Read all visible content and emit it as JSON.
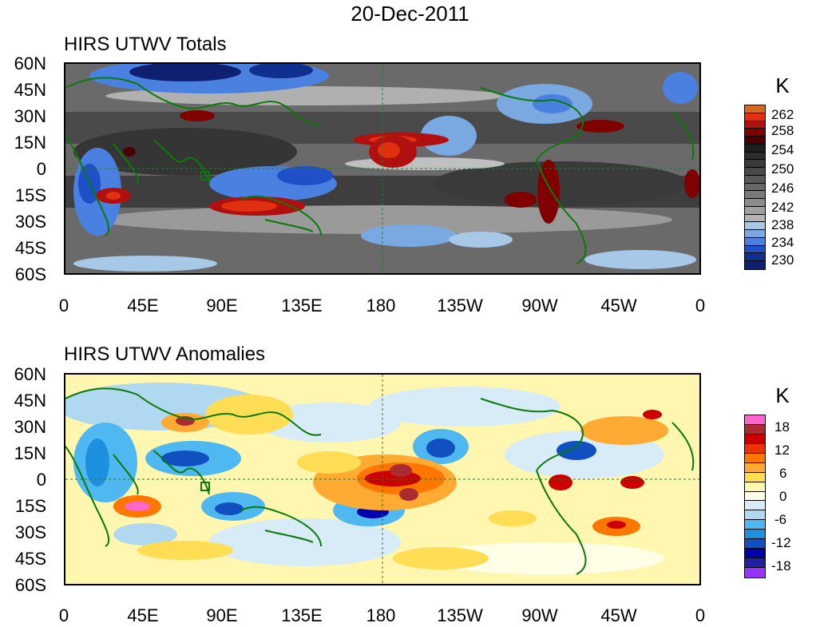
{
  "title": "20-Dec-2011",
  "x_ticks": [
    "0",
    "45E",
    "90E",
    "135E",
    "180",
    "135W",
    "90W",
    "45W",
    "0"
  ],
  "y_ticks": [
    "60N",
    "45N",
    "30N",
    "15N",
    "0",
    "15S",
    "30S",
    "45S",
    "60S"
  ],
  "panels": [
    {
      "title": "HIRS UTWV Totals",
      "units": "K",
      "colorbar_labels": [
        "262",
        "258",
        "254",
        "250",
        "246",
        "242",
        "238",
        "234",
        "230"
      ],
      "colorbar_colors": [
        "#d2691e",
        "#e03010",
        "#b01010",
        "#800000",
        "#4a0000",
        "#1e1e1e",
        "#2c2c2c",
        "#3a3a3a",
        "#494949",
        "#585858",
        "#686868",
        "#7a7a7a",
        "#8c8c8c",
        "#a0a0a0",
        "#b4b4b4",
        "#a8c8e8",
        "#7aa8e0",
        "#4a80e0",
        "#2050c8",
        "#103090",
        "#102070"
      ]
    },
    {
      "title": "HIRS UTWV Anomalies",
      "units": "K",
      "colorbar_labels": [
        "18",
        "12",
        "6",
        "0",
        "-6",
        "-12",
        "-18"
      ],
      "colorbar_colors": [
        "#ff66cc",
        "#aa2b30",
        "#cc0000",
        "#ee3300",
        "#ff7700",
        "#ffaa33",
        "#ffdd55",
        "#fff6b0",
        "#ffffe8",
        "#d8ecf8",
        "#b0d8f0",
        "#50b8f0",
        "#1e90e0",
        "#1050c0",
        "#0000aa",
        "#2020a0",
        "#9933ff"
      ]
    }
  ]
}
